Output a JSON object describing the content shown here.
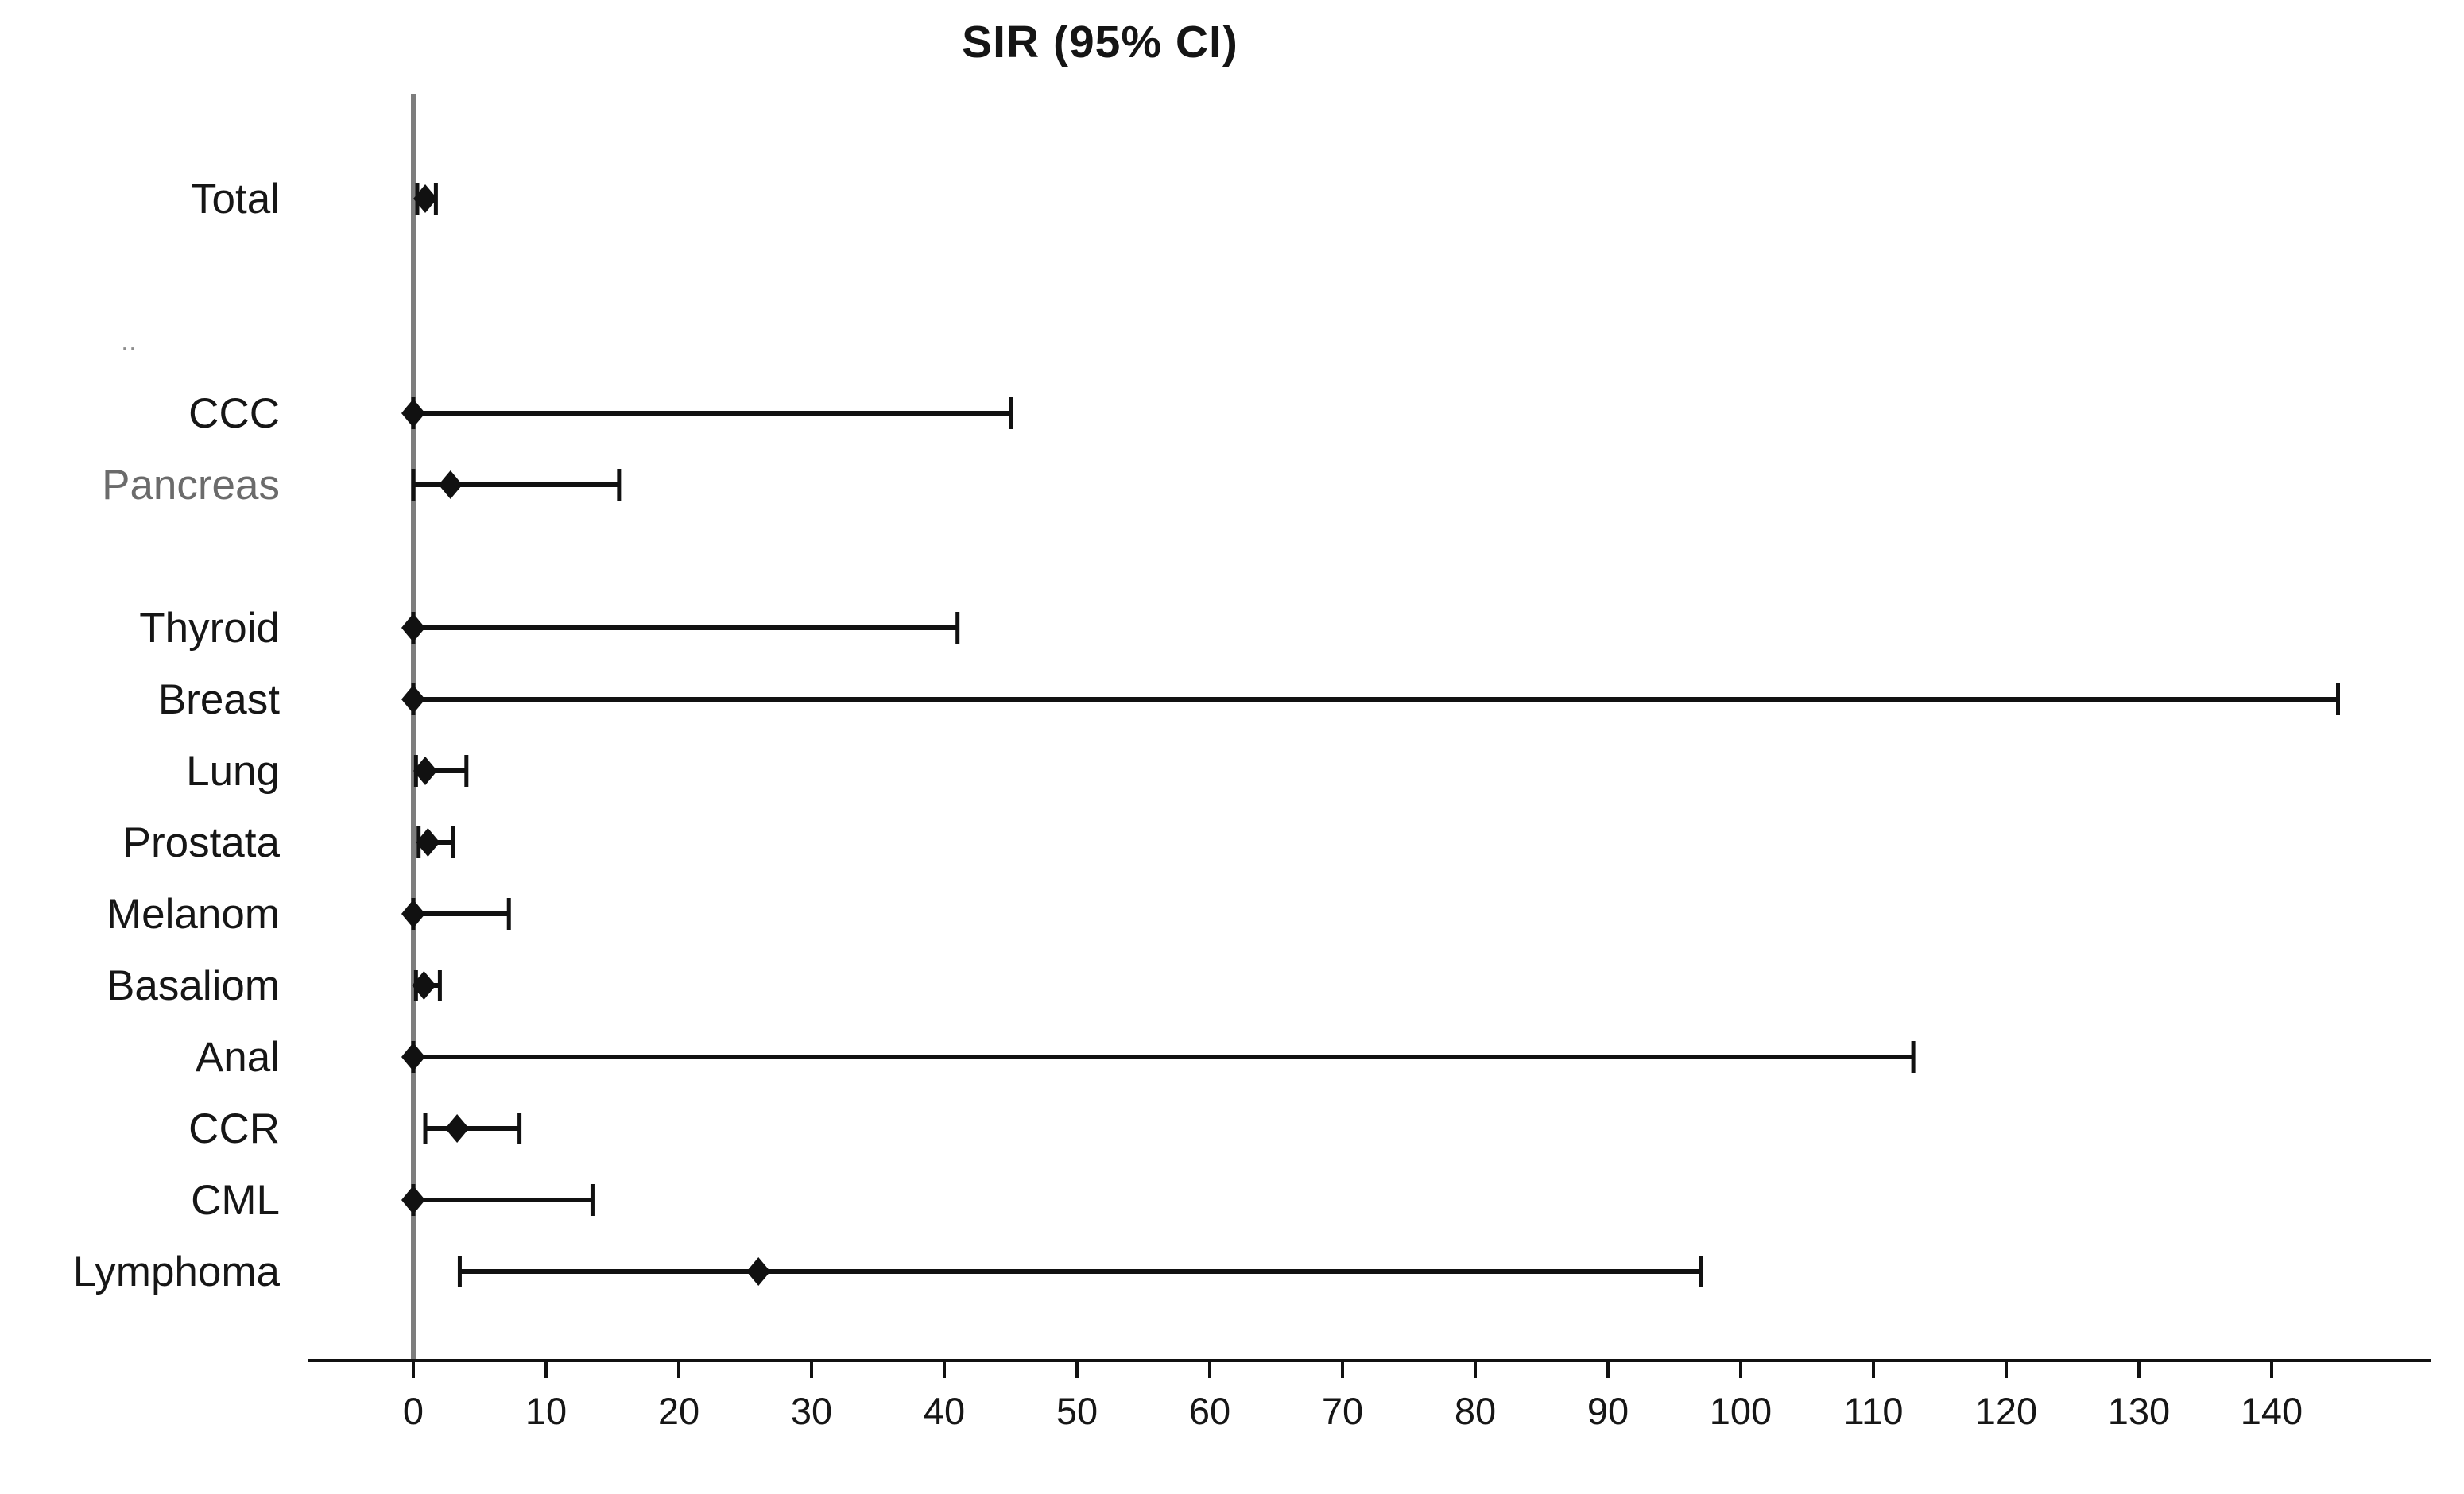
{
  "stray_mark": "..",
  "colors": {
    "marker": "#111111",
    "line": "#111111",
    "reference_line": "#7d7d7d",
    "text": "#161616",
    "muted_text": "#6b6b6b"
  },
  "chart_data": {
    "type": "forest",
    "title": "SIR (95% CI)",
    "xlabel": "",
    "ylabel": "",
    "xlim": [
      -8,
      152
    ],
    "xticks": [
      0,
      10,
      20,
      30,
      40,
      50,
      60,
      70,
      80,
      90,
      100,
      110,
      120,
      130,
      140
    ],
    "reference_line_x": 0,
    "marker": "diamond",
    "grid": false,
    "legend": "none",
    "rows": [
      {
        "label": "Total",
        "sir": 0.9,
        "ci_low": 0.3,
        "ci_high": 1.7
      },
      {
        "label": "",
        "spacer": true
      },
      {
        "label": "",
        "spacer": true
      },
      {
        "label": "CCC",
        "sir": 0,
        "ci_low": 0,
        "ci_high": 45
      },
      {
        "label": "Pancreas",
        "sir": 2.8,
        "ci_low": 0,
        "ci_high": 15.5,
        "muted": true
      },
      {
        "label": "",
        "spacer": true
      },
      {
        "label": "Thyroid",
        "sir": 0,
        "ci_low": 0,
        "ci_high": 41
      },
      {
        "label": "Breast",
        "sir": 0,
        "ci_low": 0,
        "ci_high": 145
      },
      {
        "label": "Lung",
        "sir": 0.9,
        "ci_low": 0.2,
        "ci_high": 4
      },
      {
        "label": "Prostata",
        "sir": 1.1,
        "ci_low": 0.4,
        "ci_high": 3
      },
      {
        "label": "Melanom",
        "sir": 0,
        "ci_low": 0,
        "ci_high": 7.2
      },
      {
        "label": "Basaliom",
        "sir": 0.8,
        "ci_low": 0.2,
        "ci_high": 2
      },
      {
        "label": "Anal",
        "sir": 0,
        "ci_low": 0,
        "ci_high": 113
      },
      {
        "label": "CCR",
        "sir": 3.3,
        "ci_low": 0.9,
        "ci_high": 8
      },
      {
        "label": "CML",
        "sir": 0,
        "ci_low": 0,
        "ci_high": 13.5
      },
      {
        "label": "Lymphoma",
        "sir": 26,
        "ci_low": 3.5,
        "ci_high": 97
      }
    ]
  }
}
